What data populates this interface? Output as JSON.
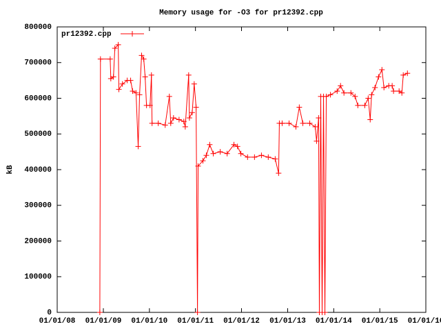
{
  "chart_data": {
    "type": "line",
    "title": "Memory usage for -O3 for pr12392.cpp",
    "ylabel": "kB",
    "legend": "top-left",
    "xlim": [
      "2008-01-01",
      "2016-01-01"
    ],
    "xticks": [
      {
        "value": "2008-01-01",
        "label": "01/01/08"
      },
      {
        "value": "2009-01-01",
        "label": "01/01/09"
      },
      {
        "value": "2010-01-01",
        "label": "01/01/10"
      },
      {
        "value": "2011-01-01",
        "label": "01/01/11"
      },
      {
        "value": "2012-01-01",
        "label": "01/01/12"
      },
      {
        "value": "2013-01-01",
        "label": "01/01/13"
      },
      {
        "value": "2014-01-01",
        "label": "01/01/14"
      },
      {
        "value": "2015-01-01",
        "label": "01/01/15"
      },
      {
        "value": "2016-01-01",
        "label": "01/01/16"
      }
    ],
    "ylim": [
      0,
      800000
    ],
    "yticks": [
      0,
      100000,
      200000,
      300000,
      400000,
      500000,
      600000,
      700000,
      800000
    ],
    "x": [
      "2008-12-04",
      "2008-12-09",
      "2009-02-24",
      "2009-03-01",
      "2009-03-22",
      "2009-04-02",
      "2009-04-29",
      "2009-05-04",
      "2009-06-01",
      "2009-07-09",
      "2009-08-05",
      "2009-08-21",
      "2009-09-17",
      "2009-10-04",
      "2009-10-15",
      "2009-10-31",
      "2009-11-17",
      "2009-11-28",
      "2009-12-09",
      "2010-01-06",
      "2010-01-17",
      "2010-01-22",
      "2010-03-12",
      "2010-05-06",
      "2010-06-08",
      "2010-06-19",
      "2010-07-11",
      "2010-08-24",
      "2010-10-01",
      "2010-10-12",
      "2010-11-08",
      "2010-11-14",
      "2010-12-06",
      "2010-12-22",
      "2011-01-06",
      "2011-01-17",
      "2011-01-22",
      "2011-03-01",
      "2011-03-28",
      "2011-04-24",
      "2011-05-22",
      "2011-07-16",
      "2011-09-09",
      "2011-11-02",
      "2011-11-30",
      "2011-12-27",
      "2012-02-18",
      "2012-04-13",
      "2012-06-07",
      "2012-07-31",
      "2012-09-24",
      "2012-10-21",
      "2012-10-27",
      "2012-11-18",
      "2013-01-12",
      "2013-03-07",
      "2013-04-03",
      "2013-05-01",
      "2013-06-25",
      "2013-08-07",
      "2013-08-18",
      "2013-09-03",
      "2013-09-09",
      "2013-09-20",
      "2013-10-01",
      "2013-10-12",
      "2013-10-23",
      "2013-11-03",
      "2013-12-06",
      "2014-01-28",
      "2014-02-24",
      "2014-03-23",
      "2014-05-17",
      "2014-06-19",
      "2014-07-11",
      "2014-09-04",
      "2014-10-01",
      "2014-10-17",
      "2014-10-28",
      "2014-11-24",
      "2014-12-22",
      "2015-01-18",
      "2015-02-03",
      "2015-03-13",
      "2015-04-09",
      "2015-04-20",
      "2015-06-03",
      "2015-06-25",
      "2015-07-06",
      "2015-08-08"
    ],
    "series": [
      {
        "name": "pr12392.cpp",
        "color": "#ff0000",
        "values": [
          0,
          710000,
          710000,
          655000,
          660000,
          740000,
          750000,
          625000,
          640000,
          650000,
          650000,
          620000,
          615000,
          465000,
          610000,
          720000,
          710000,
          660000,
          580000,
          580000,
          665000,
          530000,
          530000,
          525000,
          605000,
          530000,
          545000,
          540000,
          535000,
          520000,
          665000,
          545000,
          560000,
          640000,
          575000,
          0,
          410000,
          425000,
          440000,
          470000,
          445000,
          450000,
          445000,
          470000,
          465000,
          445000,
          435000,
          435000,
          440000,
          435000,
          430000,
          390000,
          530000,
          530000,
          530000,
          520000,
          575000,
          530000,
          530000,
          520000,
          480000,
          545000,
          0,
          605000,
          0,
          605000,
          0,
          605000,
          610000,
          620000,
          635000,
          615000,
          615000,
          605000,
          580000,
          580000,
          600000,
          540000,
          610000,
          630000,
          660000,
          680000,
          630000,
          635000,
          635000,
          620000,
          620000,
          615000,
          665000,
          670000
        ]
      }
    ]
  }
}
